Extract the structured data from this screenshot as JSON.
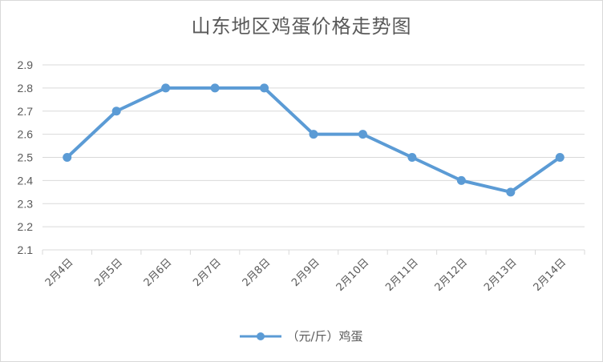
{
  "chart_data": {
    "type": "line",
    "title": "山东地区鸡蛋价格走势图",
    "xlabel": "",
    "ylabel": "",
    "categories": [
      "2月4日",
      "2月5日",
      "2月6日",
      "2月7日",
      "2月8日",
      "2月9日",
      "2月10日",
      "2月11日",
      "2月12日",
      "2月13日",
      "2月14日"
    ],
    "series": [
      {
        "name": "（元/斤）鸡蛋",
        "values": [
          2.5,
          2.7,
          2.8,
          2.8,
          2.8,
          2.6,
          2.6,
          2.5,
          2.4,
          2.35,
          2.5
        ]
      }
    ],
    "ylim": [
      2.1,
      2.9
    ],
    "yticks": [
      "2.1",
      "2.2",
      "2.3",
      "2.4",
      "2.5",
      "2.6",
      "2.7",
      "2.8",
      "2.9"
    ],
    "grid": true,
    "legend_position": "bottom",
    "colors": {
      "series": "#5b9bd5",
      "grid": "#d9d9d9",
      "text": "#595959"
    }
  }
}
